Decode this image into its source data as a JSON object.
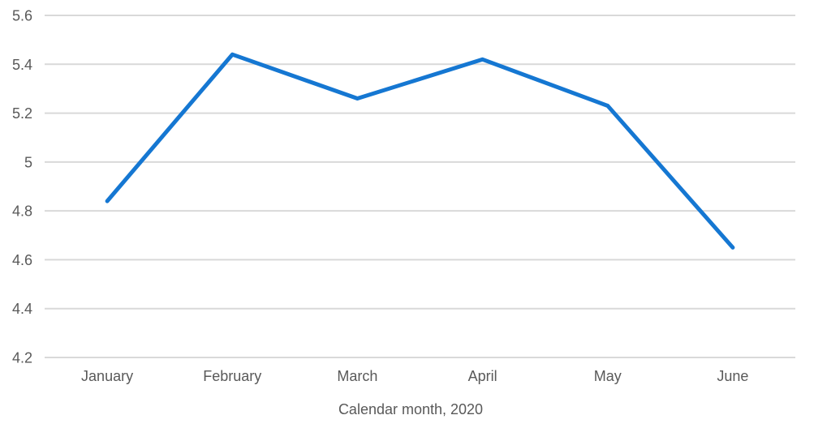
{
  "chart_data": {
    "type": "line",
    "title": "",
    "xlabel": "Calendar month, 2020",
    "ylabel": "",
    "categories": [
      "January",
      "February",
      "March",
      "April",
      "May",
      "June"
    ],
    "series": [
      {
        "name": "series-1",
        "values": [
          4.84,
          5.44,
          5.26,
          5.42,
          5.23,
          4.65
        ],
        "color": "#1577d2"
      }
    ],
    "ylim": [
      4.2,
      5.6
    ],
    "ytick_step": 0.2,
    "yticks": [
      "4.2",
      "4.4",
      "4.6",
      "4.8",
      "5",
      "5.2",
      "5.4",
      "5.6"
    ],
    "grid": true,
    "legend": false,
    "markers": false
  },
  "style": {
    "line_color": "#1577d2",
    "grid_color": "#d9d9d9",
    "label_color": "#595959",
    "background": "#ffffff",
    "line_width": 5
  }
}
